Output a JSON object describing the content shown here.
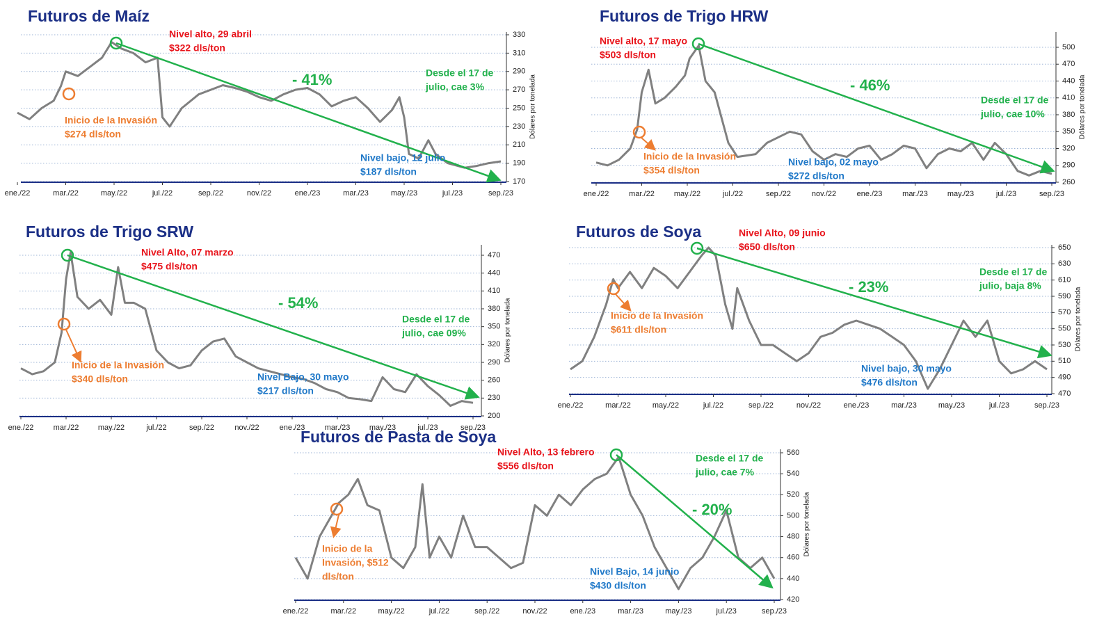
{
  "chart_data": [
    {
      "type": "line",
      "title": "Futuros de Maíz",
      "ylabel": "Dólares por tonelada",
      "color": "#808080",
      "xlim": [
        0,
        20
      ],
      "ylim": [
        170,
        330
      ],
      "yticks": [
        170,
        190,
        210,
        230,
        250,
        270,
        290,
        310,
        330
      ],
      "xticks": [
        {
          "value": 0,
          "label": "ene./22"
        },
        {
          "value": 2,
          "label": "mar./22"
        },
        {
          "value": 4,
          "label": "may./22"
        },
        {
          "value": 6,
          "label": "jul./22"
        },
        {
          "value": 8,
          "label": "sep./22"
        },
        {
          "value": 10,
          "label": "nov./22"
        },
        {
          "value": 12,
          "label": "ene./23"
        },
        {
          "value": 14,
          "label": "mar./23"
        },
        {
          "value": 16,
          "label": "may./23"
        },
        {
          "value": 18,
          "label": "jul./23"
        },
        {
          "value": 20,
          "label": "sep./23"
        }
      ],
      "x": [
        0,
        0.5,
        1,
        1.5,
        1.8,
        2,
        2.5,
        3,
        3.5,
        3.9,
        4.3,
        4.8,
        5.3,
        5.8,
        6,
        6.3,
        6.8,
        7.5,
        8,
        8.5,
        9,
        9.5,
        10,
        10.5,
        11,
        11.5,
        12,
        12.5,
        13,
        13.5,
        14,
        14.5,
        15,
        15.5,
        15.8,
        16,
        16.2,
        16.6,
        17,
        17.3,
        17.8,
        18.5,
        19,
        19.5,
        20
      ],
      "values": [
        245,
        238,
        250,
        258,
        274,
        290,
        285,
        295,
        305,
        322,
        315,
        310,
        300,
        305,
        240,
        230,
        250,
        265,
        270,
        275,
        272,
        268,
        262,
        258,
        265,
        270,
        272,
        265,
        252,
        258,
        262,
        250,
        235,
        248,
        262,
        240,
        200,
        195,
        215,
        200,
        190,
        185,
        187,
        190,
        192
      ],
      "annotations": [
        {
          "lines": [
            "Nivel alto, 29 abril",
            "$322 dls/ton"
          ],
          "color": "#e8141b"
        },
        {
          "lines": [
            "Inicio de la Invasión",
            "$274 dls/ton"
          ],
          "color": "#ed7d31"
        },
        {
          "lines": [
            "- 41%"
          ],
          "color": "#22b14c"
        },
        {
          "lines": [
            "Desde el 17 de",
            "julio, cae 3%"
          ],
          "color": "#22b14c"
        },
        {
          "lines": [
            "Nivel bajo, 12 julio",
            "$187 dls/ton"
          ],
          "color": "#1f78c8"
        }
      ]
    },
    {
      "type": "line",
      "title": "Futuros de Trigo HRW",
      "ylabel": "Dólares por tonelada",
      "color": "#808080",
      "xlim": [
        0,
        20
      ],
      "ylim": [
        260,
        500
      ],
      "yticks": [
        260,
        290,
        320,
        350,
        380,
        410,
        440,
        470,
        500
      ],
      "xticks": [
        {
          "value": 0,
          "label": "ene./22"
        },
        {
          "value": 2,
          "label": "mar./22"
        },
        {
          "value": 4,
          "label": "may./22"
        },
        {
          "value": 6,
          "label": "jul./22"
        },
        {
          "value": 8,
          "label": "sep./22"
        },
        {
          "value": 10,
          "label": "nov./22"
        },
        {
          "value": 12,
          "label": "ene./23"
        },
        {
          "value": 14,
          "label": "mar./23"
        },
        {
          "value": 16,
          "label": "may./23"
        },
        {
          "value": 18,
          "label": "jul./23"
        },
        {
          "value": 20,
          "label": "sep./23"
        }
      ],
      "x": [
        0,
        0.5,
        1,
        1.5,
        1.8,
        2,
        2.3,
        2.6,
        3,
        3.5,
        3.9,
        4.1,
        4.5,
        4.8,
        5.2,
        5.8,
        6.2,
        7,
        7.5,
        8,
        8.5,
        9,
        9.5,
        10,
        10.5,
        11,
        11.5,
        12,
        12.5,
        13,
        13.5,
        14,
        14.5,
        15,
        15.5,
        16,
        16.5,
        17,
        17.5,
        18,
        18.5,
        19,
        19.5,
        20
      ],
      "values": [
        295,
        290,
        300,
        320,
        354,
        420,
        460,
        400,
        410,
        430,
        450,
        480,
        503,
        440,
        420,
        330,
        305,
        310,
        330,
        340,
        350,
        345,
        315,
        300,
        310,
        305,
        320,
        325,
        300,
        310,
        325,
        320,
        285,
        310,
        320,
        315,
        330,
        300,
        330,
        310,
        280,
        272,
        280,
        275
      ],
      "annotations": [
        {
          "lines": [
            "Nivel alto, 17 mayo",
            "$503 dls/ton"
          ],
          "color": "#e8141b"
        },
        {
          "lines": [
            "Inicio de la Invasión",
            "$354 dls/ton"
          ],
          "color": "#ed7d31"
        },
        {
          "lines": [
            "- 46%"
          ],
          "color": "#22b14c"
        },
        {
          "lines": [
            "Desde el 17 de",
            "julio, cae 10%"
          ],
          "color": "#22b14c"
        },
        {
          "lines": [
            "Nivel bajo, 02 mayo",
            "$272 dls/ton"
          ],
          "color": "#1f78c8"
        }
      ]
    },
    {
      "type": "line",
      "title": "Futuros de Trigo SRW",
      "ylabel": "Dólares por tonelada",
      "color": "#808080",
      "xlim": [
        0,
        20
      ],
      "ylim": [
        200,
        470
      ],
      "yticks": [
        200,
        230,
        260,
        290,
        320,
        350,
        380,
        410,
        440,
        470
      ],
      "xticks": [
        {
          "value": 0,
          "label": "ene./22"
        },
        {
          "value": 2,
          "label": "mar./22"
        },
        {
          "value": 4,
          "label": "may./22"
        },
        {
          "value": 6,
          "label": "jul./22"
        },
        {
          "value": 8,
          "label": "sep./22"
        },
        {
          "value": 10,
          "label": "nov./22"
        },
        {
          "value": 12,
          "label": "ene./23"
        },
        {
          "value": 14,
          "label": "mar./23"
        },
        {
          "value": 16,
          "label": "may./23"
        },
        {
          "value": 18,
          "label": "jul./23"
        },
        {
          "value": 20,
          "label": "sep./23"
        }
      ],
      "x": [
        0,
        0.5,
        1,
        1.5,
        1.8,
        2,
        2.2,
        2.5,
        3,
        3.5,
        4,
        4.3,
        4.6,
        5,
        5.5,
        6,
        6.5,
        7,
        7.5,
        8,
        8.5,
        9,
        9.5,
        10,
        10.5,
        11,
        11.5,
        12,
        12.5,
        13,
        13.5,
        14,
        14.5,
        15,
        15.5,
        16,
        16.5,
        17,
        17.5,
        18,
        18.5,
        19,
        19.5,
        20
      ],
      "values": [
        280,
        270,
        275,
        290,
        340,
        430,
        475,
        400,
        380,
        395,
        370,
        450,
        390,
        390,
        380,
        310,
        290,
        280,
        285,
        310,
        325,
        330,
        300,
        290,
        280,
        275,
        270,
        265,
        262,
        255,
        245,
        240,
        230,
        228,
        225,
        265,
        245,
        240,
        270,
        250,
        235,
        217,
        225,
        222
      ],
      "annotations": [
        {
          "lines": [
            "Nivel Alto, 07 marzo",
            "$475 dls/ton"
          ],
          "color": "#e8141b"
        },
        {
          "lines": [
            "Inicio de la Invasión",
            "$340 dls/ton"
          ],
          "color": "#ed7d31"
        },
        {
          "lines": [
            "- 54%"
          ],
          "color": "#22b14c"
        },
        {
          "lines": [
            "Desde el 17 de",
            "julio, cae 09%"
          ],
          "color": "#22b14c"
        },
        {
          "lines": [
            "Nivel Bajo, 30 mayo",
            "$217 dls/ton"
          ],
          "color": "#1f78c8"
        }
      ]
    },
    {
      "type": "line",
      "title": "Futuros de Soya",
      "ylabel": "Dólares por tonelada",
      "color": "#808080",
      "xlim": [
        0,
        20
      ],
      "ylim": [
        470,
        650
      ],
      "yticks": [
        470,
        490,
        510,
        530,
        550,
        570,
        590,
        610,
        630,
        650
      ],
      "xticks": [
        {
          "value": 0,
          "label": "ene./22"
        },
        {
          "value": 2,
          "label": "mar./22"
        },
        {
          "value": 4,
          "label": "may./22"
        },
        {
          "value": 6,
          "label": "jul./22"
        },
        {
          "value": 8,
          "label": "sep./22"
        },
        {
          "value": 10,
          "label": "nov./22"
        },
        {
          "value": 12,
          "label": "ene./23"
        },
        {
          "value": 14,
          "label": "mar./23"
        },
        {
          "value": 16,
          "label": "may./23"
        },
        {
          "value": 18,
          "label": "jul./23"
        },
        {
          "value": 20,
          "label": "sep./23"
        }
      ],
      "x": [
        0,
        0.5,
        1,
        1.5,
        1.8,
        2,
        2.5,
        3,
        3.5,
        4,
        4.5,
        5,
        5.5,
        5.8,
        6.1,
        6.5,
        6.8,
        7,
        7.5,
        8,
        8.5,
        9,
        9.5,
        10,
        10.5,
        11,
        11.5,
        12,
        12.5,
        13,
        13.5,
        14,
        14.5,
        15,
        15.5,
        16,
        16.5,
        17,
        17.5,
        18,
        18.5,
        19,
        19.5,
        20
      ],
      "values": [
        500,
        510,
        540,
        580,
        611,
        600,
        620,
        600,
        625,
        615,
        600,
        620,
        640,
        650,
        640,
        580,
        550,
        600,
        560,
        530,
        530,
        520,
        510,
        520,
        540,
        545,
        555,
        560,
        555,
        550,
        540,
        530,
        510,
        476,
        500,
        530,
        560,
        540,
        560,
        510,
        495,
        500,
        510,
        500
      ],
      "annotations": [
        {
          "lines": [
            "Nivel Alto, 09 junio",
            "$650 dls/ton"
          ],
          "color": "#e8141b"
        },
        {
          "lines": [
            "Inicio de la Invasión",
            "$611 dls/ton"
          ],
          "color": "#ed7d31"
        },
        {
          "lines": [
            "- 23%"
          ],
          "color": "#22b14c"
        },
        {
          "lines": [
            "Desde el 17 de",
            "julio, baja 8%"
          ],
          "color": "#22b14c"
        },
        {
          "lines": [
            "Nivel bajo, 30 mayo",
            "$476 dls/ton"
          ],
          "color": "#1f78c8"
        }
      ]
    },
    {
      "type": "line",
      "title": "Futuros de Pasta de Soya",
      "ylabel": "Dólares por tonelada",
      "color": "#808080",
      "xlim": [
        0,
        20
      ],
      "ylim": [
        420,
        560
      ],
      "yticks": [
        420,
        440,
        460,
        480,
        500,
        520,
        540,
        560
      ],
      "xticks": [
        {
          "value": 0,
          "label": "ene./22"
        },
        {
          "value": 2,
          "label": "mar./22"
        },
        {
          "value": 4,
          "label": "may./22"
        },
        {
          "value": 6,
          "label": "jul./22"
        },
        {
          "value": 8,
          "label": "sep./22"
        },
        {
          "value": 10,
          "label": "nov./22"
        },
        {
          "value": 12,
          "label": "ene./23"
        },
        {
          "value": 14,
          "label": "mar./23"
        },
        {
          "value": 16,
          "label": "may./23"
        },
        {
          "value": 18,
          "label": "jul./23"
        },
        {
          "value": 20,
          "label": "sep./23"
        }
      ],
      "x": [
        0,
        0.5,
        1,
        1.5,
        1.8,
        2.2,
        2.6,
        3,
        3.5,
        4,
        4.5,
        5,
        5.3,
        5.6,
        6,
        6.5,
        7,
        7.5,
        8,
        8.5,
        9,
        9.5,
        10,
        10.5,
        11,
        11.5,
        12,
        12.5,
        13,
        13.5,
        14,
        14.5,
        15,
        15.5,
        16,
        16.5,
        17,
        17.5,
        18,
        18.5,
        19,
        19.5,
        20
      ],
      "values": [
        460,
        440,
        480,
        500,
        512,
        520,
        535,
        510,
        505,
        460,
        450,
        470,
        530,
        460,
        480,
        460,
        500,
        470,
        470,
        460,
        450,
        455,
        510,
        500,
        520,
        510,
        525,
        535,
        540,
        556,
        520,
        500,
        470,
        450,
        430,
        450,
        460,
        480,
        505,
        460,
        450,
        460,
        440
      ],
      "annotations": [
        {
          "lines": [
            "Nivel Alto, 13 febrero",
            "$556 dls/ton"
          ],
          "color": "#e8141b"
        },
        {
          "lines": [
            "Inicio de la",
            "Invasión, $512",
            "dls/ton"
          ],
          "color": "#ed7d31"
        },
        {
          "lines": [
            "- 20%"
          ],
          "color": "#22b14c"
        },
        {
          "lines": [
            "Desde el 17 de",
            "julio, cae 7%"
          ],
          "color": "#22b14c"
        },
        {
          "lines": [
            "Nivel Bajo, 14 junio",
            "$430 dls/ton"
          ],
          "color": "#1f78c8"
        }
      ]
    }
  ]
}
